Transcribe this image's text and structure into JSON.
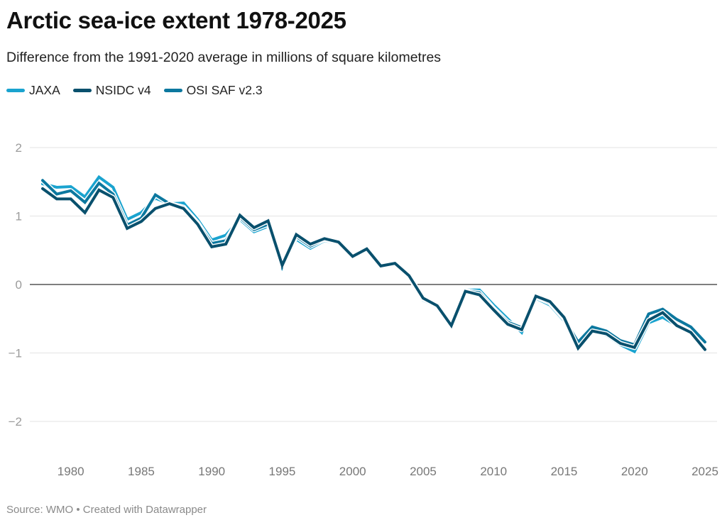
{
  "header": {
    "title": "Arctic sea-ice extent 1978-2025",
    "subtitle": "Difference from the 1991-2020 average in millions of square kilometres"
  },
  "footer": {
    "source": "Source: WMO • Created with Datawrapper"
  },
  "chart_data": {
    "type": "line",
    "title": "Arctic sea-ice extent 1978-2025",
    "subtitle": "Difference from the 1991-2020 average in millions of square kilometres",
    "xlabel": "",
    "ylabel": "",
    "xlim": [
      1978,
      2025
    ],
    "ylim": [
      -2.5,
      2
    ],
    "yticks": [
      2,
      1,
      0,
      -1,
      -2
    ],
    "ytick_labels": [
      "2",
      "1",
      "0",
      "−1",
      "−2"
    ],
    "xticks": [
      1980,
      1985,
      1990,
      1995,
      2000,
      2005,
      2010,
      2015,
      2020,
      2025
    ],
    "xtick_labels": [
      "1980",
      "1985",
      "1990",
      "1995",
      "2000",
      "2005",
      "2010",
      "2015",
      "2020",
      "2025"
    ],
    "grid": true,
    "zero_line": true,
    "legend": "top-left",
    "x": [
      1978,
      1979,
      1980,
      1981,
      1982,
      1983,
      1984,
      1985,
      1986,
      1987,
      1988,
      1989,
      1990,
      1991,
      1992,
      1993,
      1994,
      1995,
      1996,
      1997,
      1998,
      1999,
      2000,
      2001,
      2002,
      2003,
      2004,
      2005,
      2006,
      2007,
      2008,
      2009,
      2010,
      2011,
      2012,
      2013,
      2014,
      2015,
      2016,
      2017,
      2018,
      2019,
      2020,
      2021,
      2022,
      2023,
      2024,
      2025
    ],
    "series": [
      {
        "name": "JAXA",
        "color": "#1aa3cf",
        "values": [
          1.47,
          1.42,
          1.43,
          1.28,
          1.57,
          1.42,
          0.95,
          1.05,
          1.26,
          1.18,
          1.19,
          0.95,
          0.65,
          0.72,
          0.95,
          0.77,
          0.85,
          0.25,
          0.66,
          0.53,
          0.64,
          0.6,
          0.41,
          0.5,
          0.25,
          0.3,
          0.12,
          -0.23,
          -0.32,
          -0.59,
          -0.08,
          -0.08,
          -0.3,
          -0.5,
          -0.7,
          -0.2,
          -0.3,
          -0.53,
          -0.88,
          -0.66,
          -0.74,
          -0.88,
          -0.98,
          -0.56,
          -0.48,
          -0.6,
          -0.7,
          -0.95
        ]
      },
      {
        "name": "NSIDC v4",
        "color": "#09506d",
        "values": [
          1.4,
          1.25,
          1.25,
          1.05,
          1.38,
          1.27,
          0.82,
          0.92,
          1.11,
          1.18,
          1.11,
          0.88,
          0.55,
          0.59,
          1.01,
          0.83,
          0.93,
          0.28,
          0.73,
          0.59,
          0.67,
          0.62,
          0.41,
          0.52,
          0.27,
          0.31,
          0.13,
          -0.2,
          -0.31,
          -0.6,
          -0.1,
          -0.15,
          -0.37,
          -0.58,
          -0.66,
          -0.17,
          -0.25,
          -0.48,
          -0.93,
          -0.68,
          -0.72,
          -0.86,
          -0.92,
          -0.52,
          -0.41,
          -0.6,
          -0.7,
          -0.95
        ]
      },
      {
        "name": "OSI SAF v2.3",
        "color": "#0c789f",
        "values": [
          1.52,
          1.32,
          1.37,
          1.2,
          1.48,
          1.32,
          0.87,
          0.97,
          1.31,
          1.18,
          1.13,
          0.9,
          0.6,
          0.64,
          0.98,
          0.8,
          0.88,
          0.26,
          0.7,
          0.56,
          0.66,
          0.61,
          0.41,
          0.51,
          0.26,
          0.31,
          0.13,
          -0.21,
          -0.31,
          -0.6,
          -0.09,
          -0.12,
          -0.35,
          -0.55,
          -0.63,
          -0.18,
          -0.27,
          -0.5,
          -0.84,
          -0.62,
          -0.68,
          -0.82,
          -0.88,
          -0.43,
          -0.36,
          -0.51,
          -0.62,
          -0.84
        ]
      }
    ]
  }
}
